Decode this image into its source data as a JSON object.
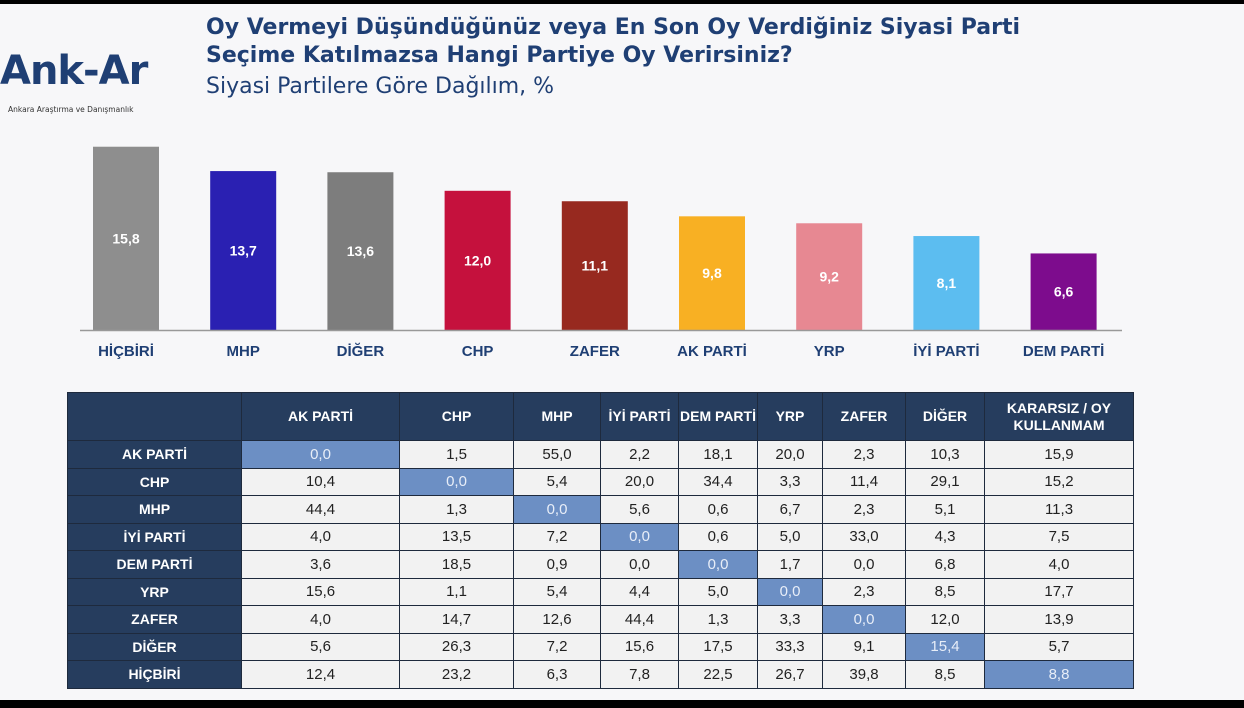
{
  "logo": {
    "text": "Ank-Ar",
    "subtext": "Ankara Araştırma ve Danışmanlık"
  },
  "header": {
    "title_line1": "Oy Vermeyi Düşündüğünüz veya En Son Oy Verdiğiniz Siyasi Parti",
    "title_line2": "Seçime Katılmazsa Hangi Partiye Oy Verirsiniz?",
    "subtitle": "Siyasi Partilere Göre Dağılım, %"
  },
  "chart_data": {
    "type": "bar",
    "categories": [
      "HİÇBİRİ",
      "MHP",
      "DİĞER",
      "CHP",
      "ZAFER",
      "AK PARTİ",
      "YRP",
      "İYİ PARTİ",
      "DEM PARTİ"
    ],
    "values": [
      15.8,
      13.7,
      13.6,
      12.0,
      11.1,
      9.8,
      9.2,
      8.1,
      6.6
    ],
    "labels": [
      "15,8",
      "13,7",
      "13,6",
      "12,0",
      "11,1",
      "9,8",
      "9,2",
      "8,1",
      "6,6"
    ],
    "colors": [
      "#8e8e8e",
      "#2a20b2",
      "#7d7d7d",
      "#c5113d",
      "#97291f",
      "#f8b023",
      "#e78892",
      "#5cbdf0",
      "#7d0c8d"
    ],
    "ylim": [
      0,
      16
    ],
    "grid": false
  },
  "table": {
    "columns": [
      "AK PARTİ",
      "CHP",
      "MHP",
      "İYİ PARTİ",
      "DEM PARTİ",
      "YRP",
      "ZAFER",
      "DİĞER",
      "KARARSIZ / OY KULLANMAM"
    ],
    "rows": [
      {
        "label": "AK PARTİ",
        "values": [
          "0,0",
          "1,5",
          "55,0",
          "2,2",
          "18,1",
          "20,0",
          "2,3",
          "10,3",
          "15,9"
        ]
      },
      {
        "label": "CHP",
        "values": [
          "10,4",
          "0,0",
          "5,4",
          "20,0",
          "34,4",
          "3,3",
          "11,4",
          "29,1",
          "15,2"
        ]
      },
      {
        "label": "MHP",
        "values": [
          "44,4",
          "1,3",
          "0,0",
          "5,6",
          "0,6",
          "6,7",
          "2,3",
          "5,1",
          "11,3"
        ]
      },
      {
        "label": "İYİ PARTİ",
        "values": [
          "4,0",
          "13,5",
          "7,2",
          "0,0",
          "0,6",
          "5,0",
          "33,0",
          "4,3",
          "7,5"
        ]
      },
      {
        "label": "DEM PARTİ",
        "values": [
          "3,6",
          "18,5",
          "0,9",
          "0,0",
          "0,0",
          "1,7",
          "0,0",
          "6,8",
          "4,0"
        ]
      },
      {
        "label": "YRP",
        "values": [
          "15,6",
          "1,1",
          "5,4",
          "4,4",
          "5,0",
          "0,0",
          "2,3",
          "8,5",
          "17,7"
        ]
      },
      {
        "label": "ZAFER",
        "values": [
          "4,0",
          "14,7",
          "12,6",
          "44,4",
          "1,3",
          "3,3",
          "0,0",
          "12,0",
          "13,9"
        ]
      },
      {
        "label": "DİĞER",
        "values": [
          "5,6",
          "26,3",
          "7,2",
          "15,6",
          "17,5",
          "33,3",
          "9,1",
          "15,4",
          "5,7"
        ]
      },
      {
        "label": "HİÇBİRİ",
        "values": [
          "12,4",
          "23,2",
          "6,3",
          "7,8",
          "22,5",
          "26,7",
          "39,8",
          "8,5",
          "8,8"
        ]
      }
    ]
  }
}
